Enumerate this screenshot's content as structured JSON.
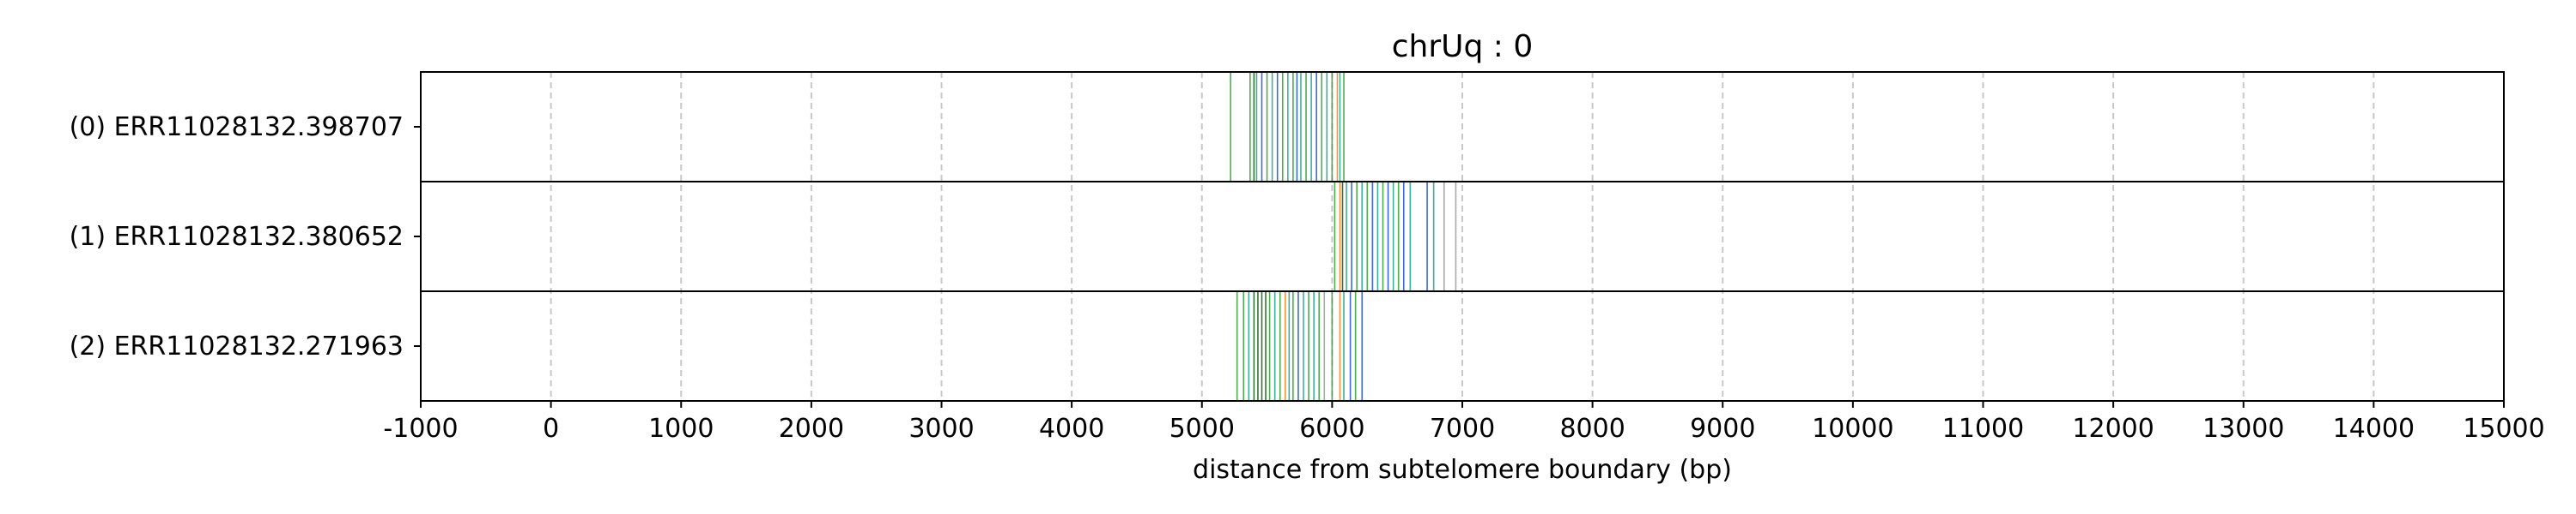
{
  "chart_data": {
    "type": "event-track",
    "title": "chrUq : 0",
    "xlabel": "distance from subtelomere boundary (bp)",
    "xlim": [
      -1000,
      15000
    ],
    "xticks": [
      -1000,
      0,
      1000,
      2000,
      3000,
      4000,
      5000,
      6000,
      7000,
      8000,
      9000,
      10000,
      11000,
      12000,
      13000,
      14000,
      15000
    ],
    "grid": "vertical-dashed",
    "colors": {
      "green": "#2ca02c",
      "teal": "#17a38a",
      "blue": "#1f4fd6",
      "orange": "#ff7f0e",
      "darkgreen": "#0b5d0b",
      "gray": "#9a9a9a"
    },
    "rows": [
      {
        "label": "(0) ERR11028132.398707",
        "events": [
          {
            "x": 5220,
            "c": "green"
          },
          {
            "x": 5370,
            "c": "green"
          },
          {
            "x": 5400,
            "c": "darkgreen"
          },
          {
            "x": 5420,
            "c": "teal"
          },
          {
            "x": 5460,
            "c": "blue"
          },
          {
            "x": 5500,
            "c": "green"
          },
          {
            "x": 5540,
            "c": "teal"
          },
          {
            "x": 5580,
            "c": "blue"
          },
          {
            "x": 5620,
            "c": "green"
          },
          {
            "x": 5660,
            "c": "teal"
          },
          {
            "x": 5700,
            "c": "green"
          },
          {
            "x": 5730,
            "c": "blue"
          },
          {
            "x": 5760,
            "c": "teal"
          },
          {
            "x": 5800,
            "c": "green"
          },
          {
            "x": 5840,
            "c": "teal"
          },
          {
            "x": 5880,
            "c": "blue"
          },
          {
            "x": 5920,
            "c": "green"
          },
          {
            "x": 5960,
            "c": "teal"
          },
          {
            "x": 6000,
            "c": "green"
          },
          {
            "x": 6040,
            "c": "orange"
          },
          {
            "x": 6060,
            "c": "teal"
          },
          {
            "x": 6090,
            "c": "green"
          }
        ]
      },
      {
        "label": "(1) ERR11028132.380652",
        "events": [
          {
            "x": 6020,
            "c": "green"
          },
          {
            "x": 6060,
            "c": "orange"
          },
          {
            "x": 6080,
            "c": "darkgreen"
          },
          {
            "x": 6110,
            "c": "teal"
          },
          {
            "x": 6150,
            "c": "blue"
          },
          {
            "x": 6190,
            "c": "green"
          },
          {
            "x": 6230,
            "c": "teal"
          },
          {
            "x": 6270,
            "c": "green"
          },
          {
            "x": 6310,
            "c": "blue"
          },
          {
            "x": 6350,
            "c": "teal"
          },
          {
            "x": 6390,
            "c": "green"
          },
          {
            "x": 6430,
            "c": "blue"
          },
          {
            "x": 6470,
            "c": "teal"
          },
          {
            "x": 6510,
            "c": "green"
          },
          {
            "x": 6550,
            "c": "blue"
          },
          {
            "x": 6600,
            "c": "teal"
          },
          {
            "x": 6730,
            "c": "blue"
          },
          {
            "x": 6780,
            "c": "teal"
          },
          {
            "x": 6860,
            "c": "gray"
          },
          {
            "x": 6950,
            "c": "gray"
          }
        ]
      },
      {
        "label": "(2) ERR11028132.271963",
        "events": [
          {
            "x": 5270,
            "c": "green"
          },
          {
            "x": 5320,
            "c": "green"
          },
          {
            "x": 5360,
            "c": "teal"
          },
          {
            "x": 5400,
            "c": "darkgreen"
          },
          {
            "x": 5430,
            "c": "darkgreen"
          },
          {
            "x": 5460,
            "c": "darkgreen"
          },
          {
            "x": 5490,
            "c": "darkgreen"
          },
          {
            "x": 5520,
            "c": "green"
          },
          {
            "x": 5560,
            "c": "teal"
          },
          {
            "x": 5600,
            "c": "green"
          },
          {
            "x": 5640,
            "c": "orange"
          },
          {
            "x": 5670,
            "c": "teal"
          },
          {
            "x": 5700,
            "c": "green"
          },
          {
            "x": 5740,
            "c": "blue"
          },
          {
            "x": 5780,
            "c": "teal"
          },
          {
            "x": 5820,
            "c": "green"
          },
          {
            "x": 5860,
            "c": "teal"
          },
          {
            "x": 5900,
            "c": "green"
          },
          {
            "x": 5940,
            "c": "gray"
          },
          {
            "x": 6000,
            "c": "green"
          },
          {
            "x": 6060,
            "c": "orange"
          },
          {
            "x": 6090,
            "c": "teal"
          },
          {
            "x": 6140,
            "c": "blue"
          },
          {
            "x": 6180,
            "c": "green"
          },
          {
            "x": 6230,
            "c": "blue"
          }
        ]
      }
    ]
  }
}
